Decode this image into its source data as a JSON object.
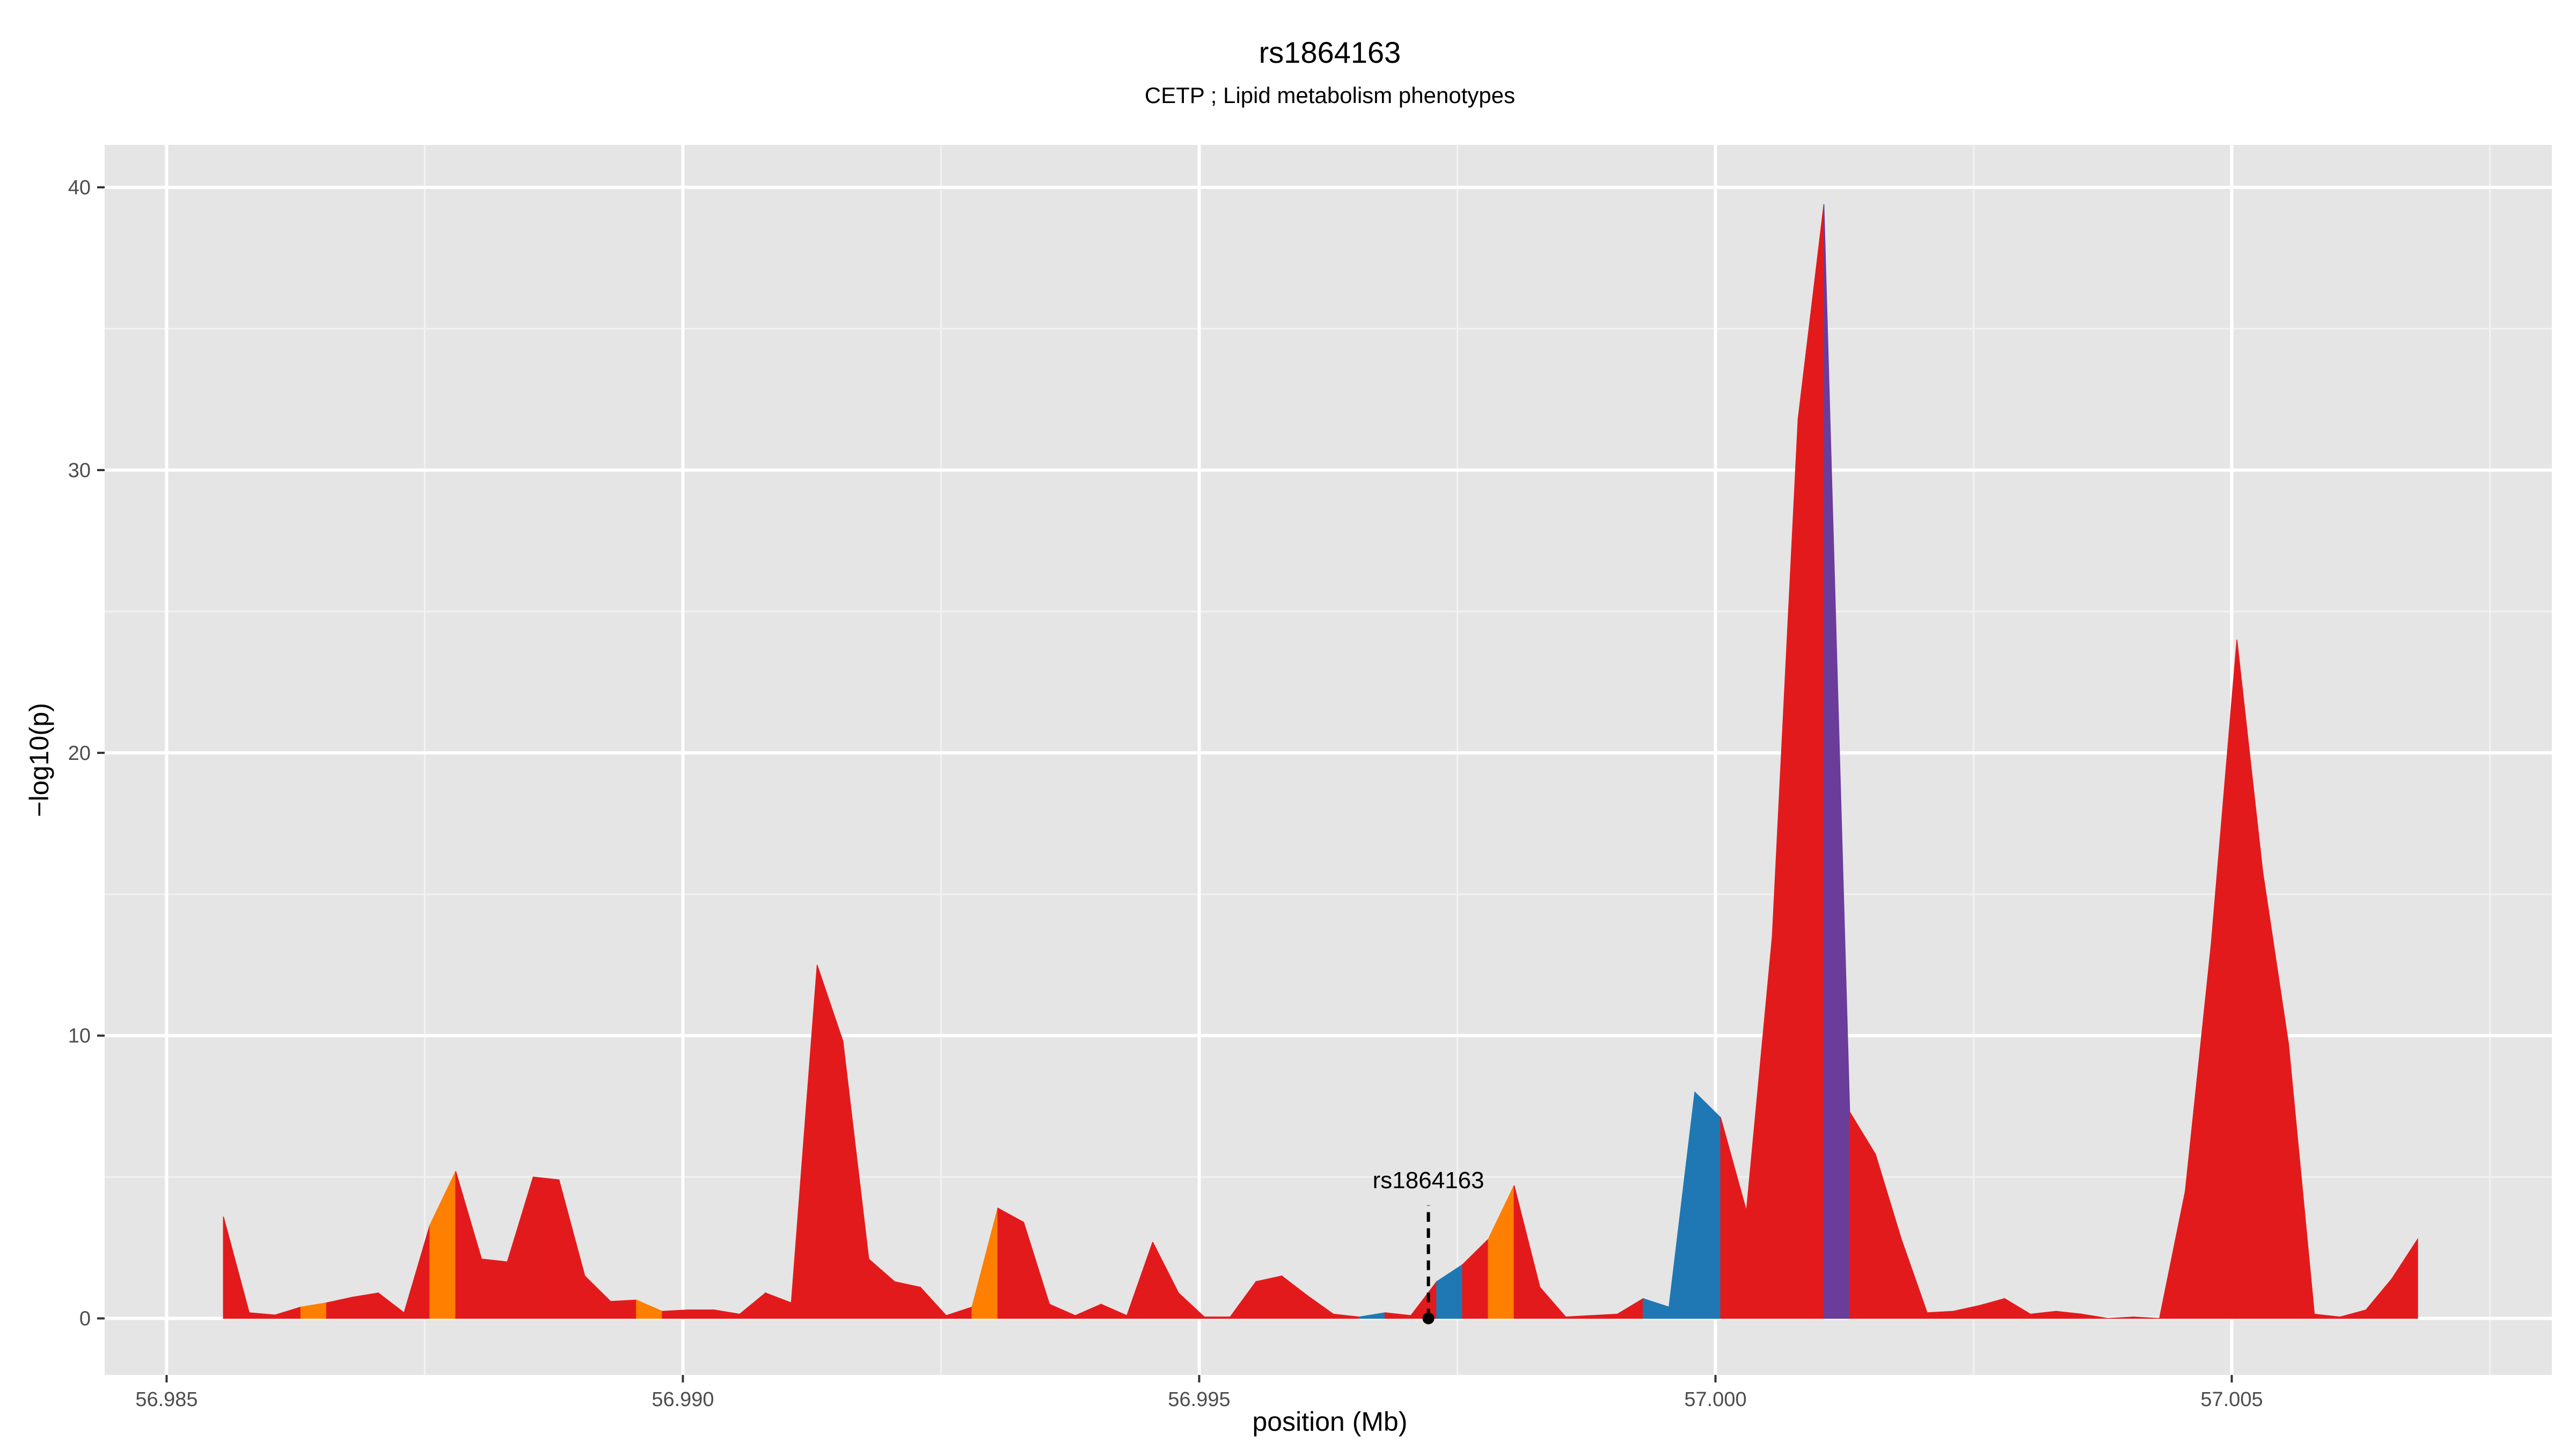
{
  "chart_data": {
    "type": "area",
    "title": "rs1864163",
    "subtitle": "CETP ; Lipid metabolism phenotypes",
    "xlabel": "position (Mb)",
    "ylabel": "−log10(p)",
    "xlim": [
      56.9844,
      57.0081
    ],
    "ylim": [
      -2,
      41.5
    ],
    "grid": true,
    "background": "#e5e5e5",
    "x_ticks": [
      56.985,
      56.99,
      56.995,
      57.0,
      57.005
    ],
    "x_tick_labels": [
      "56.985",
      "56.990",
      "56.995",
      "57.000",
      "57.005"
    ],
    "y_ticks": [
      0,
      10,
      20,
      30,
      40
    ],
    "y_tick_labels": [
      "0",
      "10",
      "20",
      "30",
      "40"
    ],
    "annotation": {
      "label": "rs1864163",
      "x": 56.99722,
      "y": 0
    },
    "colors": {
      "red": "#e31a1c",
      "orange": "#ff7f00",
      "blue": "#1f78b4",
      "purple": "#6a3d9a"
    },
    "points": [
      [
        56.98555,
        3.6
      ],
      [
        56.9858,
        0.2
      ],
      [
        56.98605,
        0.12
      ],
      [
        56.9863,
        0.4
      ],
      [
        56.98655,
        0.55
      ],
      [
        56.9868,
        0.75
      ],
      [
        56.98705,
        0.9
      ],
      [
        56.9873,
        0.2
      ],
      [
        56.98755,
        3.3
      ],
      [
        56.9878,
        5.2
      ],
      [
        56.98805,
        2.1
      ],
      [
        56.9883,
        2.0
      ],
      [
        56.98855,
        5.0
      ],
      [
        56.9888,
        4.9
      ],
      [
        56.98905,
        1.5
      ],
      [
        56.9893,
        0.6
      ],
      [
        56.98955,
        0.65
      ],
      [
        56.9898,
        0.25
      ],
      [
        56.99005,
        0.3
      ],
      [
        56.9903,
        0.3
      ],
      [
        56.99055,
        0.15
      ],
      [
        56.9908,
        0.9
      ],
      [
        56.99105,
        0.55
      ],
      [
        56.9913,
        12.5
      ],
      [
        56.99155,
        9.8
      ],
      [
        56.9918,
        2.1
      ],
      [
        56.99205,
        1.3
      ],
      [
        56.9923,
        1.1
      ],
      [
        56.99255,
        0.1
      ],
      [
        56.9928,
        0.4
      ],
      [
        56.99305,
        3.9
      ],
      [
        56.9933,
        3.4
      ],
      [
        56.99355,
        0.5
      ],
      [
        56.9938,
        0.1
      ],
      [
        56.99405,
        0.5
      ],
      [
        56.9943,
        0.1
      ],
      [
        56.99455,
        2.7
      ],
      [
        56.9948,
        0.9
      ],
      [
        56.99505,
        0.05
      ],
      [
        56.9953,
        0.05
      ],
      [
        56.99555,
        1.3
      ],
      [
        56.9958,
        1.5
      ],
      [
        56.99605,
        0.8
      ],
      [
        56.9963,
        0.15
      ],
      [
        56.99655,
        0.05
      ],
      [
        56.9968,
        0.2
      ],
      [
        56.99705,
        0.1
      ],
      [
        56.9973,
        1.3
      ],
      [
        56.99755,
        1.9
      ],
      [
        56.9978,
        2.8
      ],
      [
        56.99805,
        4.7
      ],
      [
        56.9983,
        1.1
      ],
      [
        56.99855,
        0.05
      ],
      [
        56.9988,
        0.1
      ],
      [
        56.99905,
        0.15
      ],
      [
        56.9993,
        0.7
      ],
      [
        56.99955,
        0.4
      ],
      [
        56.9998,
        8.0
      ],
      [
        57.00005,
        7.1
      ],
      [
        57.0003,
        3.8
      ],
      [
        57.00055,
        13.5
      ],
      [
        57.0008,
        31.8
      ],
      [
        57.00105,
        39.4
      ],
      [
        57.0013,
        7.3
      ],
      [
        57.00155,
        5.8
      ],
      [
        57.0018,
        2.8
      ],
      [
        57.00205,
        0.2
      ],
      [
        57.0023,
        0.25
      ],
      [
        57.00255,
        0.45
      ],
      [
        57.0028,
        0.7
      ],
      [
        57.00305,
        0.15
      ],
      [
        57.0033,
        0.25
      ],
      [
        57.00355,
        0.15
      ],
      [
        57.0038,
        0.0
      ],
      [
        57.00405,
        0.05
      ],
      [
        57.0043,
        0.0
      ],
      [
        57.00455,
        4.5
      ],
      [
        57.0048,
        13.2
      ],
      [
        57.00505,
        24.0
      ],
      [
        57.0053,
        15.8
      ],
      [
        57.00555,
        9.7
      ],
      [
        57.0058,
        0.15
      ],
      [
        57.00605,
        0.05
      ],
      [
        57.0063,
        0.3
      ],
      [
        57.00655,
        1.4
      ],
      [
        57.0068,
        2.8
      ]
    ],
    "segment_colors": [
      "red",
      "red",
      "red",
      "orange",
      "red",
      "red",
      "red",
      "red",
      "orange",
      "red",
      "red",
      "red",
      "red",
      "red",
      "red",
      "red",
      "orange",
      "red",
      "red",
      "red",
      "red",
      "red",
      "red",
      "red",
      "red",
      "red",
      "red",
      "red",
      "red",
      "orange",
      "red",
      "red",
      "red",
      "red",
      "red",
      "red",
      "red",
      "red",
      "red",
      "red",
      "red",
      "red",
      "red",
      "red",
      "blue",
      "red",
      "red",
      "blue",
      "red",
      "orange",
      "red",
      "red",
      "red",
      "red",
      "red",
      "blue",
      "blue",
      "blue",
      "red",
      "red",
      "red",
      "red",
      "purple",
      "red",
      "red",
      "red",
      "red",
      "red",
      "red",
      "red",
      "red",
      "red",
      "red",
      "red",
      "red",
      "red",
      "red",
      "red",
      "red",
      "red",
      "red",
      "red",
      "red",
      "red",
      "red"
    ]
  }
}
